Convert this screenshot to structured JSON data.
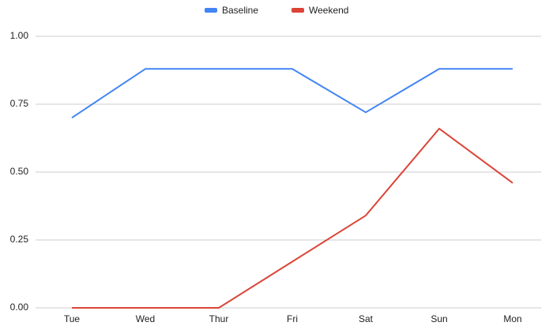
{
  "chart_data": {
    "type": "line",
    "categories": [
      "Tue",
      "Wed",
      "Thur",
      "Fri",
      "Sat",
      "Sun",
      "Mon"
    ],
    "series": [
      {
        "name": "Baseline",
        "color": "#4285f4",
        "values": [
          0.7,
          0.88,
          0.88,
          0.88,
          0.72,
          0.88,
          0.88
        ]
      },
      {
        "name": "Weekend",
        "color": "#db4437",
        "values": [
          0,
          0,
          0,
          0.17,
          0.34,
          0.66,
          0.46
        ]
      }
    ],
    "ylim": [
      0,
      1
    ],
    "yticks": [
      {
        "value": 0,
        "label": "0.00"
      },
      {
        "value": 0.25,
        "label": "0.25"
      },
      {
        "value": 0.5,
        "label": "0.50"
      },
      {
        "value": 0.75,
        "label": "0.75"
      },
      {
        "value": 1,
        "label": "1.00"
      }
    ],
    "grid": true,
    "legend": "top"
  }
}
